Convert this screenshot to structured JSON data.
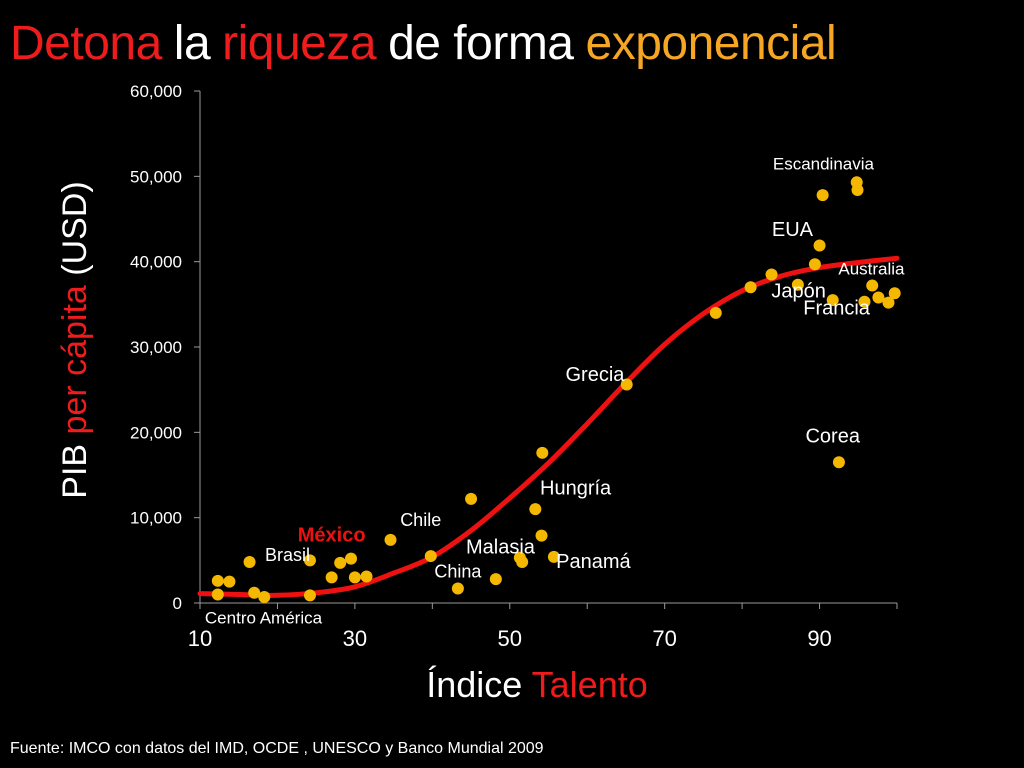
{
  "title": {
    "parts": [
      {
        "text": "Detona",
        "color": "#ee1c1c"
      },
      {
        "text": "la",
        "color": "#ffffff"
      },
      {
        "text": "riqueza",
        "color": "#ee1c1c"
      },
      {
        "text": "de forma",
        "color": "#ffffff"
      },
      {
        "text": "exponencial",
        "color": "#f5a623"
      }
    ]
  },
  "source": "Fuente: IMCO con datos del IMD, OCDE , UNESCO y Banco Mundial 2009",
  "chart_data": {
    "type": "scatter",
    "x_axis": {
      "title_parts": [
        {
          "text": "Índice",
          "color": "#ffffff"
        },
        {
          "text": "Talento",
          "color": "#ee1c1c"
        }
      ],
      "range": [
        10,
        100
      ],
      "tick_labels": [
        "10",
        "30",
        "50",
        "70",
        "90"
      ]
    },
    "y_axis": {
      "title_parts": [
        {
          "text": "PIB",
          "color": "#ffffff"
        },
        {
          "text": "per cápita",
          "color": "#ee1c1c"
        },
        {
          "text": "(USD)",
          "color": "#ffffff"
        }
      ],
      "range": [
        0,
        60000
      ],
      "tick_labels": [
        "0",
        "10,000",
        "20,000",
        "30,000",
        "40,000",
        "50,000",
        "60,000"
      ]
    },
    "grid": false,
    "colors": {
      "points": "#f5b800",
      "curve": "#ee1111",
      "axis": "#9a9a9a",
      "labels": "#ffffff",
      "highlight": "#ee1111"
    },
    "points": [
      {
        "x": 12.3,
        "y": 2600
      },
      {
        "x": 12.3,
        "y": 1000
      },
      {
        "x": 13.8,
        "y": 2500
      },
      {
        "x": 16.4,
        "y": 4800
      },
      {
        "x": 17.0,
        "y": 1200
      },
      {
        "x": 18.3,
        "y": 700
      },
      {
        "x": 24.2,
        "y": 5000
      },
      {
        "x": 24.2,
        "y": 900
      },
      {
        "x": 27.0,
        "y": 3000
      },
      {
        "x": 28.1,
        "y": 4700
      },
      {
        "x": 29.5,
        "y": 5200
      },
      {
        "x": 30.0,
        "y": 3000
      },
      {
        "x": 31.5,
        "y": 3100
      },
      {
        "x": 34.6,
        "y": 7400
      },
      {
        "x": 39.8,
        "y": 5500
      },
      {
        "x": 43.3,
        "y": 1700
      },
      {
        "x": 45.0,
        "y": 12200
      },
      {
        "x": 48.2,
        "y": 2800
      },
      {
        "x": 51.3,
        "y": 5300
      },
      {
        "x": 51.6,
        "y": 4800
      },
      {
        "x": 53.3,
        "y": 11000
      },
      {
        "x": 54.2,
        "y": 17600
      },
      {
        "x": 54.1,
        "y": 7900
      },
      {
        "x": 55.7,
        "y": 5400
      },
      {
        "x": 65.1,
        "y": 25600
      },
      {
        "x": 76.6,
        "y": 34000
      },
      {
        "x": 81.1,
        "y": 37000
      },
      {
        "x": 83.8,
        "y": 38500
      },
      {
        "x": 87.2,
        "y": 37300
      },
      {
        "x": 89.4,
        "y": 39700
      },
      {
        "x": 90.0,
        "y": 41900
      },
      {
        "x": 90.4,
        "y": 47800
      },
      {
        "x": 91.7,
        "y": 35500
      },
      {
        "x": 92.5,
        "y": 16500
      },
      {
        "x": 94.8,
        "y": 49300
      },
      {
        "x": 94.9,
        "y": 48400
      },
      {
        "x": 95.8,
        "y": 35300
      },
      {
        "x": 96.8,
        "y": 37200
      },
      {
        "x": 97.6,
        "y": 35800
      },
      {
        "x": 98.9,
        "y": 35200
      },
      {
        "x": 99.7,
        "y": 36300
      }
    ],
    "trend_curve": [
      {
        "x": 10,
        "y": 1100
      },
      {
        "x": 15,
        "y": 1000
      },
      {
        "x": 20,
        "y": 900
      },
      {
        "x": 25,
        "y": 1200
      },
      {
        "x": 30,
        "y": 1900
      },
      {
        "x": 35,
        "y": 3500
      },
      {
        "x": 40,
        "y": 5400
      },
      {
        "x": 45,
        "y": 8500
      },
      {
        "x": 50,
        "y": 12300
      },
      {
        "x": 55,
        "y": 16400
      },
      {
        "x": 60,
        "y": 21000
      },
      {
        "x": 65,
        "y": 25800
      },
      {
        "x": 70,
        "y": 30300
      },
      {
        "x": 75,
        "y": 33900
      },
      {
        "x": 80,
        "y": 36600
      },
      {
        "x": 85,
        "y": 38300
      },
      {
        "x": 90,
        "y": 39300
      },
      {
        "x": 95,
        "y": 39900
      },
      {
        "x": 100,
        "y": 40400
      }
    ],
    "annotations": [
      {
        "text": "Escandinavia",
        "x": 90.5,
        "y": 50800,
        "size": 17,
        "highlight": false
      },
      {
        "text": "EUA",
        "x": 86.5,
        "y": 43000,
        "size": 20,
        "highlight": false
      },
      {
        "text": "Australia",
        "x": 96.7,
        "y": 38500,
        "size": 17,
        "highlight": false
      },
      {
        "text": "Japón",
        "x": 87.3,
        "y": 35800,
        "size": 20,
        "highlight": false
      },
      {
        "text": "Francia",
        "x": 92.2,
        "y": 33800,
        "size": 20,
        "highlight": false
      },
      {
        "text": "Grecia",
        "x": 61.0,
        "y": 26000,
        "size": 20,
        "highlight": false
      },
      {
        "text": "Corea",
        "x": 91.7,
        "y": 18800,
        "size": 20,
        "highlight": false
      },
      {
        "text": "Hungría",
        "x": 58.5,
        "y": 12700,
        "size": 20,
        "highlight": false
      },
      {
        "text": "Chile",
        "x": 38.5,
        "y": 9000,
        "size": 18,
        "highlight": false
      },
      {
        "text": "México",
        "x": 27.0,
        "y": 7200,
        "size": 20,
        "highlight": true
      },
      {
        "text": "Malasia",
        "x": 48.8,
        "y": 5800,
        "size": 20,
        "highlight": false
      },
      {
        "text": "Brasil",
        "x": 21.3,
        "y": 4900,
        "size": 18,
        "highlight": false
      },
      {
        "text": "Panamá",
        "x": 60.8,
        "y": 4100,
        "size": 20,
        "highlight": false
      },
      {
        "text": "China",
        "x": 43.3,
        "y": 3000,
        "size": 18,
        "highlight": false
      },
      {
        "text": "Centro América",
        "x": 18.2,
        "y": -2400,
        "size": 17,
        "highlight": false
      }
    ]
  }
}
